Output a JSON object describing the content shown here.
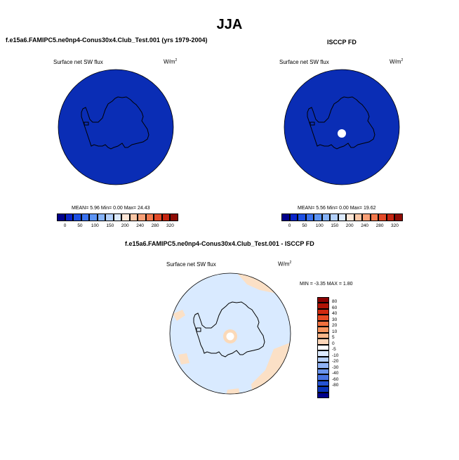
{
  "season": "JJA",
  "panels": {
    "model": {
      "title": "f.e15a6.FAMIPC5.ne0np4-Conus30x4.Club_Test.001 (yrs 1979-2004)",
      "variable": "Surface net SW flux",
      "units": "W/m",
      "units_sup": "2",
      "stats": "MEAN=   5.96  Min=   0.00  Max=  24.43"
    },
    "obs": {
      "title": "ISCCP FD",
      "variable": "Surface net SW flux",
      "units": "W/m",
      "units_sup": "2",
      "stats": "MEAN=   5.56  Min=   0.00  Max=  19.62"
    },
    "diff": {
      "title": "f.e15a6.FAMIPC5.ne0np4-Conus30x4.Club_Test.001 - ISCCP FD",
      "variable": "Surface net SW flux",
      "units": "W/m",
      "units_sup": "2",
      "stats": "MIN =  -3.35 MAX =   1.80"
    }
  },
  "colorbar_abs": {
    "ticks": [
      "0",
      "50",
      "100",
      "150",
      "200",
      "240",
      "280",
      "320"
    ],
    "colors": [
      "#00008b",
      "#0a24c8",
      "#1d4fe2",
      "#3a72ef",
      "#5c94f5",
      "#86b3f8",
      "#b3d0fb",
      "#dceafd",
      "#fde7d8",
      "#fbc7a6",
      "#f8a077",
      "#f27a4e",
      "#e24a28",
      "#c42612",
      "#8e0c05"
    ]
  },
  "colorbar_diff": {
    "ticks": [
      "80",
      "60",
      "40",
      "30",
      "20",
      "10",
      "5",
      "0",
      "-5",
      "-10",
      "-20",
      "-30",
      "-40",
      "-60",
      "-80"
    ],
    "colors": [
      "#8b0000",
      "#b01305",
      "#d02a10",
      "#e54a22",
      "#f0703d",
      "#f6955f",
      "#fab78a",
      "#fdd6b8",
      "#ffffff",
      "#dceaff",
      "#b7d0fa",
      "#8fb2f4",
      "#6a93ec",
      "#4773e2",
      "#2554d3",
      "#0a34b8",
      "#00008b"
    ]
  },
  "colors": {
    "ocean_dark": "#0a2db5",
    "ocean_diff": "#d9eaff",
    "diff_patch": "#fbe0c6",
    "land_line": "#000000"
  }
}
